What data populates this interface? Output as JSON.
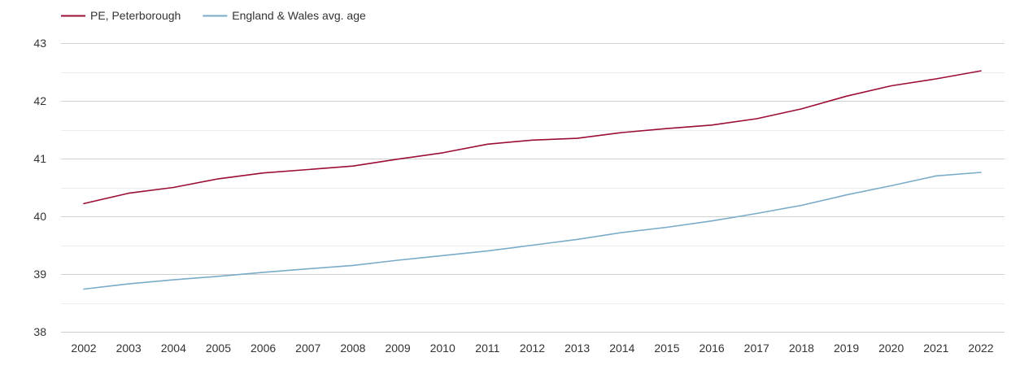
{
  "chart_data": {
    "type": "line",
    "title": "",
    "xlabel": "",
    "ylabel": "",
    "categories": [
      "2002",
      "2003",
      "2004",
      "2005",
      "2006",
      "2007",
      "2008",
      "2009",
      "2010",
      "2011",
      "2012",
      "2013",
      "2014",
      "2015",
      "2016",
      "2017",
      "2018",
      "2019",
      "2020",
      "2021",
      "2022"
    ],
    "ylim": [
      38,
      43
    ],
    "yticks": [
      "38",
      "39",
      "40",
      "41",
      "42",
      "43"
    ],
    "grid": true,
    "legend_position": "top-left",
    "series": [
      {
        "name": "PE, Peterborough",
        "color": "#9b0d35",
        "values": [
          40.22,
          40.4,
          40.5,
          40.65,
          40.75,
          40.81,
          40.87,
          40.99,
          41.1,
          41.25,
          41.32,
          41.35,
          41.45,
          41.52,
          41.58,
          41.69,
          41.86,
          42.08,
          42.26,
          42.38,
          42.52
        ]
      },
      {
        "name": "England & Wales avg. age",
        "color": "#7aabc9",
        "values": [
          38.74,
          38.83,
          38.9,
          38.96,
          39.03,
          39.09,
          39.15,
          39.24,
          39.32,
          39.4,
          39.5,
          39.6,
          39.72,
          39.81,
          39.92,
          40.05,
          40.19,
          40.37,
          40.53,
          40.7,
          40.76
        ]
      }
    ]
  }
}
